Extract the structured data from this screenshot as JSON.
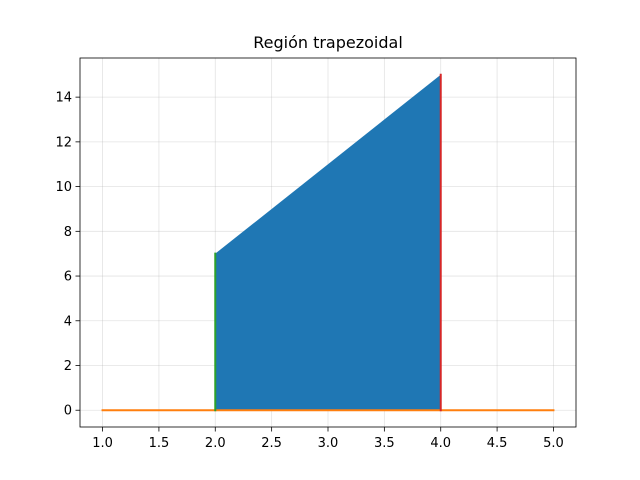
{
  "chart_data": {
    "type": "area",
    "title": "Región trapezoidal",
    "xlabel": "",
    "ylabel": "",
    "xlim": [
      0.8,
      5.2
    ],
    "ylim": [
      -0.75,
      15.75
    ],
    "grid": true,
    "x_ticks": [
      "1.0",
      "1.5",
      "2.0",
      "2.5",
      "3.0",
      "3.5",
      "4.0",
      "4.5",
      "5.0"
    ],
    "y_ticks": [
      "0",
      "2",
      "4",
      "6",
      "8",
      "10",
      "12",
      "14"
    ],
    "series": [
      {
        "kind": "fill",
        "color": "#1f77b4",
        "x": [
          2.0,
          4.0
        ],
        "y": [
          7,
          15
        ],
        "y_base": 0
      },
      {
        "kind": "segment",
        "color": "#ff7f0e",
        "x": [
          1.0,
          5.0
        ],
        "y": [
          0,
          0
        ]
      },
      {
        "kind": "segment",
        "color": "#2ca02c",
        "x": [
          2.0,
          2.0
        ],
        "y": [
          0,
          7
        ]
      },
      {
        "kind": "segment",
        "color": "#d62728",
        "x": [
          4.0,
          4.0
        ],
        "y": [
          0,
          15
        ]
      }
    ]
  }
}
